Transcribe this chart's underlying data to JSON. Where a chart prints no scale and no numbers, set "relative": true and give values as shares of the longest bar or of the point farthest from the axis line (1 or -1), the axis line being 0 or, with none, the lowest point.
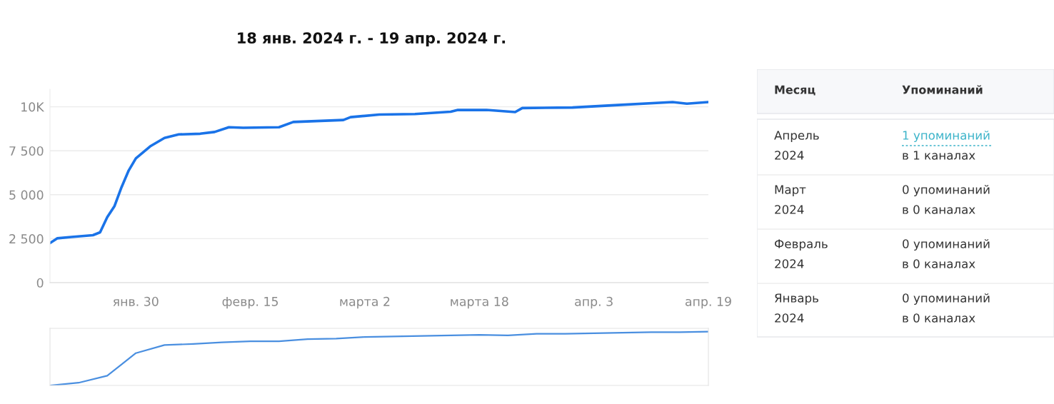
{
  "chart_data": [
    {
      "type": "line",
      "title": "18 янв. 2024 г. - 19 апр. 2024 г.",
      "x": [
        "2024-01-18",
        "2024-01-19",
        "2024-01-21",
        "2024-01-24",
        "2024-01-25",
        "2024-01-26",
        "2024-01-27",
        "2024-01-28",
        "2024-01-29",
        "2024-01-30",
        "2024-02-01",
        "2024-02-03",
        "2024-02-05",
        "2024-02-08",
        "2024-02-10",
        "2024-02-12",
        "2024-02-14",
        "2024-02-19",
        "2024-02-21",
        "2024-02-28",
        "2024-02-29",
        "2024-03-04",
        "2024-03-09",
        "2024-03-14",
        "2024-03-15",
        "2024-03-19",
        "2024-03-23",
        "2024-03-24",
        "2024-03-31",
        "2024-04-05",
        "2024-04-14",
        "2024-04-16",
        "2024-04-19"
      ],
      "series": [
        {
          "color": "#1a73e8",
          "values": [
            2250,
            2520,
            2600,
            2700,
            2860,
            3720,
            4340,
            5430,
            6380,
            7070,
            7750,
            8230,
            8430,
            8470,
            8570,
            8840,
            8810,
            8840,
            9140,
            9250,
            9410,
            9560,
            9590,
            9720,
            9820,
            9820,
            9700,
            9930,
            9960,
            10070,
            10270,
            10180,
            10270
          ]
        }
      ],
      "xlim": [
        "2024-01-18",
        "2024-04-19"
      ],
      "xticks": [
        {
          "value": "2024-01-30",
          "label": "янв. 30"
        },
        {
          "value": "2024-02-15",
          "label": "февр. 15"
        },
        {
          "value": "2024-03-02",
          "label": "марта 2"
        },
        {
          "value": "2024-03-18",
          "label": "марта 18"
        },
        {
          "value": "2024-04-03",
          "label": "апр. 3"
        },
        {
          "value": "2024-04-19",
          "label": "апр. 19"
        }
      ],
      "ylim": [
        0,
        11000
      ],
      "yticks": [
        0,
        {
          "value": 2500,
          "label": "2 500"
        },
        {
          "value": 5000,
          "label": "5 000"
        },
        {
          "value": 7500,
          "label": "7 500"
        },
        {
          "value": 10000,
          "label": "10K"
        }
      ],
      "grid": "y",
      "legend": false,
      "marker": "none",
      "line_style": "solid"
    },
    {
      "type": "line",
      "relative": true,
      "categories": [
        null,
        null,
        null,
        null,
        null,
        null,
        null,
        null,
        null,
        null,
        null,
        null,
        null,
        null,
        null,
        null,
        null,
        null,
        null,
        null,
        null,
        null,
        null,
        null
      ],
      "series": [
        {
          "color": "#4a8fe0",
          "values": [
            0,
            0.05,
            0.18,
            0.6,
            0.75,
            0.77,
            0.8,
            0.82,
            0.82,
            0.86,
            0.87,
            0.9,
            0.91,
            0.92,
            0.93,
            0.94,
            0.93,
            0.96,
            0.96,
            0.97,
            0.98,
            0.99,
            0.99,
            1
          ]
        }
      ],
      "grid": false,
      "legend": false,
      "marker": "none",
      "line_style": "solid"
    },
    {
      "type": "other",
      "annotations": [
        "Месяц",
        "Упоминаний",
        "Апрель\n2024",
        "1 упоминаний\nв 1 каналах",
        "Март\n2024",
        "0 упоминаний\nв 0 каналах",
        "Февраль\n2024",
        "0 упоминаний\nв 0 каналах",
        "Январь\n2024",
        "0 упоминаний\nв 0 каналах"
      ]
    }
  ]
}
